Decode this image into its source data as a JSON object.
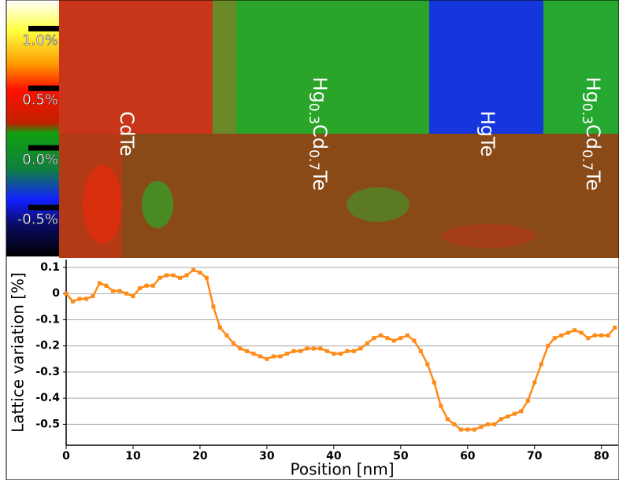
{
  "chart_data": [
    {
      "type": "heatmap",
      "clim": [
        -0.9,
        1.25
      ],
      "colorbar_ticks": [
        {
          "value": 1.0,
          "label": "1.0%"
        },
        {
          "value": 0.5,
          "label": "0.5%"
        },
        {
          "value": 0.0,
          "label": "0.0%"
        },
        {
          "value": -0.5,
          "label": "-0.5%"
        }
      ],
      "annotations": [
        {
          "parts": [
            "CdTe"
          ],
          "x": 160
        },
        {
          "parts": [
            "Hg",
            "0.3",
            "Cd",
            "0.7",
            "Te"
          ],
          "x": 405
        },
        {
          "parts": [
            "HgTe"
          ],
          "x": 618
        },
        {
          "parts": [
            "Hg",
            "0.3",
            "Cd",
            "0.7",
            "Te"
          ],
          "x": 752
        }
      ]
    },
    {
      "type": "line",
      "xlabel": "Position [nm]",
      "ylabel": "Lattice variation [%]",
      "xlim": [
        0,
        82.5
      ],
      "ylim": [
        -0.58,
        0.13
      ],
      "xticks": [
        0,
        10,
        20,
        30,
        40,
        50,
        60,
        70,
        80
      ],
      "yticks": [
        0.1,
        0,
        -0.1,
        -0.2,
        -0.3,
        -0.4,
        -0.5
      ],
      "grid": true,
      "x": [
        0,
        1,
        2,
        3,
        4,
        5,
        6,
        7,
        8,
        9,
        10,
        11,
        12,
        13,
        14,
        15,
        16,
        17,
        18,
        19,
        20,
        21,
        22,
        23,
        24,
        25,
        26,
        27,
        28,
        29,
        30,
        31,
        32,
        33,
        34,
        35,
        36,
        37,
        38,
        39,
        40,
        41,
        42,
        43,
        44,
        45,
        46,
        47,
        48,
        49,
        50,
        51,
        52,
        53,
        54,
        55,
        56,
        57,
        58,
        59,
        60,
        61,
        62,
        63,
        64,
        65,
        66,
        67,
        68,
        69,
        70,
        71,
        72,
        73,
        74,
        75,
        76,
        77,
        78,
        79,
        80,
        81,
        82
      ],
      "series": [
        {
          "color": "#ff8a16",
          "values": [
            0,
            -0.03,
            -0.02,
            -0.02,
            -0.01,
            0.04,
            0.03,
            0.01,
            0.01,
            0,
            -0.01,
            0.02,
            0.03,
            0.03,
            0.06,
            0.07,
            0.07,
            0.06,
            0.07,
            0.09,
            0.08,
            0.06,
            -0.05,
            -0.13,
            -0.16,
            -0.19,
            -0.21,
            -0.22,
            -0.23,
            -0.24,
            -0.25,
            -0.24,
            -0.24,
            -0.23,
            -0.22,
            -0.22,
            -0.21,
            -0.21,
            -0.21,
            -0.22,
            -0.23,
            -0.23,
            -0.22,
            -0.22,
            -0.21,
            -0.19,
            -0.17,
            -0.16,
            -0.17,
            -0.18,
            -0.17,
            -0.16,
            -0.18,
            -0.22,
            -0.27,
            -0.34,
            -0.43,
            -0.48,
            -0.5,
            -0.52,
            -0.52,
            -0.52,
            -0.51,
            -0.5,
            -0.5,
            -0.48,
            -0.47,
            -0.46,
            -0.45,
            -0.41,
            -0.34,
            -0.27,
            -0.2,
            -0.17,
            -0.16,
            -0.15,
            -0.14,
            -0.15,
            -0.17,
            -0.16,
            -0.16,
            -0.16,
            -0.13
          ]
        }
      ]
    }
  ]
}
